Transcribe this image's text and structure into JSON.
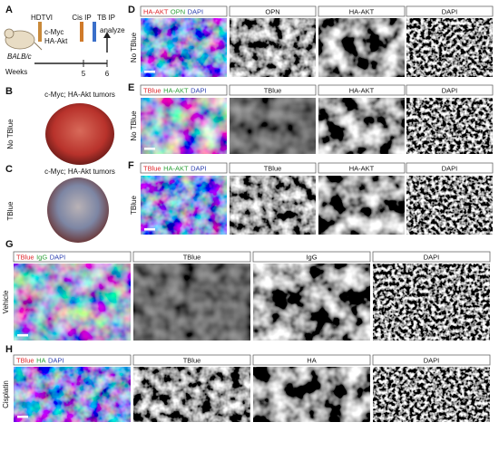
{
  "figure": {
    "panel_a": {
      "letter": "A",
      "injection": "HDTVI",
      "plasmids": [
        "c-Myc",
        "HA-Akt"
      ],
      "cis": "Cis IP",
      "tb": "TB IP",
      "analyze": "analyze",
      "strain": "BALB/c",
      "axis": "Weeks",
      "ticks": [
        "5",
        "6"
      ]
    },
    "panel_b": {
      "letter": "B",
      "title": "c-Myc; HA-Akt tumors",
      "condition": "No TBlue"
    },
    "panel_c": {
      "letter": "C",
      "title": "c-Myc; HA-Akt tumors",
      "condition": "TBlue"
    },
    "image_panels": [
      {
        "letter": "D",
        "condition": "No TBlue",
        "merge": [
          {
            "text": "HA-AKT",
            "color": "#e0252a"
          },
          {
            "text": "OPN",
            "color": "#2fa23a"
          },
          {
            "text": "DAPI",
            "color": "#2b3fb0"
          }
        ],
        "channels": [
          "OPN",
          "HA-AKT",
          "DAPI"
        ]
      },
      {
        "letter": "E",
        "condition": "No TBlue",
        "merge": [
          {
            "text": "TBlue",
            "color": "#e0252a"
          },
          {
            "text": "HA-AKT",
            "color": "#2fa23a"
          },
          {
            "text": "DAPI",
            "color": "#2b3fb0"
          }
        ],
        "channels": [
          "TBlue",
          "HA-AKT",
          "DAPI"
        ]
      },
      {
        "letter": "F",
        "condition": "TBlue",
        "merge": [
          {
            "text": "TBlue",
            "color": "#e0252a"
          },
          {
            "text": "HA-AKT",
            "color": "#2fa23a"
          },
          {
            "text": "DAPI",
            "color": "#2b3fb0"
          }
        ],
        "channels": [
          "TBlue",
          "HA-AKT",
          "DAPI"
        ]
      },
      {
        "letter": "G",
        "condition": "Vehicle",
        "merge": [
          {
            "text": "TBlue",
            "color": "#e0252a"
          },
          {
            "text": "IgG",
            "color": "#2fa23a"
          },
          {
            "text": "DAPI",
            "color": "#2b3fb0"
          }
        ],
        "channels": [
          "TBlue",
          "IgG",
          "DAPI"
        ]
      },
      {
        "letter": "H",
        "condition": "Cisplatin",
        "merge": [
          {
            "text": "TBlue",
            "color": "#e0252a"
          },
          {
            "text": "HA",
            "color": "#2fa23a"
          },
          {
            "text": "DAPI",
            "color": "#2b3fb0"
          }
        ],
        "channels": [
          "TBlue",
          "HA",
          "DAPI"
        ]
      }
    ]
  }
}
